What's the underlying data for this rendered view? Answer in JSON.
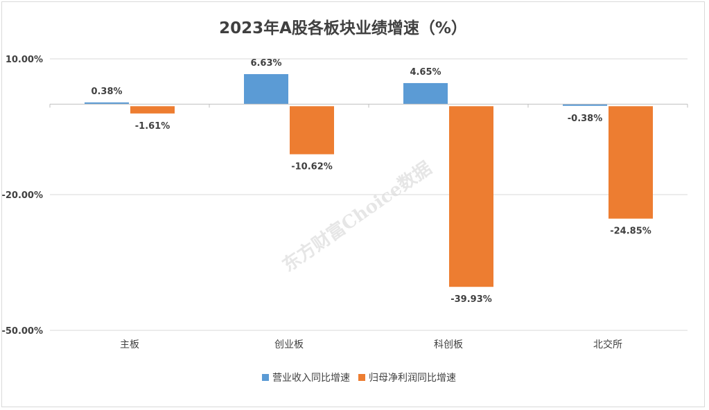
{
  "chart_data": {
    "type": "bar",
    "title": "2023年A股各板块业绩增速（%）",
    "categories": [
      "主板",
      "创业板",
      "科创板",
      "北交所"
    ],
    "series": [
      {
        "name": "营业收入同比增速",
        "color": "#5b9bd5",
        "values": [
          0.38,
          6.63,
          4.65,
          -0.38
        ],
        "labels": [
          "0.38%",
          "6.63%",
          "4.65%",
          "-0.38%"
        ]
      },
      {
        "name": "归母净利润同比增速",
        "color": "#ed7d31",
        "values": [
          -1.61,
          -10.62,
          -39.93,
          -24.85
        ],
        "labels": [
          "-1.61%",
          "-10.62%",
          "-39.93%",
          "-24.85%"
        ]
      }
    ],
    "yticks": [
      10,
      -20,
      -50
    ],
    "ytick_labels": [
      "10.00%",
      "-20.00%",
      "-50.00%"
    ],
    "ylim": [
      -50,
      10
    ],
    "xlabel": "",
    "ylabel": "",
    "grid": true,
    "legend": "bottom-center"
  },
  "watermark": "东方财富Choice数据"
}
